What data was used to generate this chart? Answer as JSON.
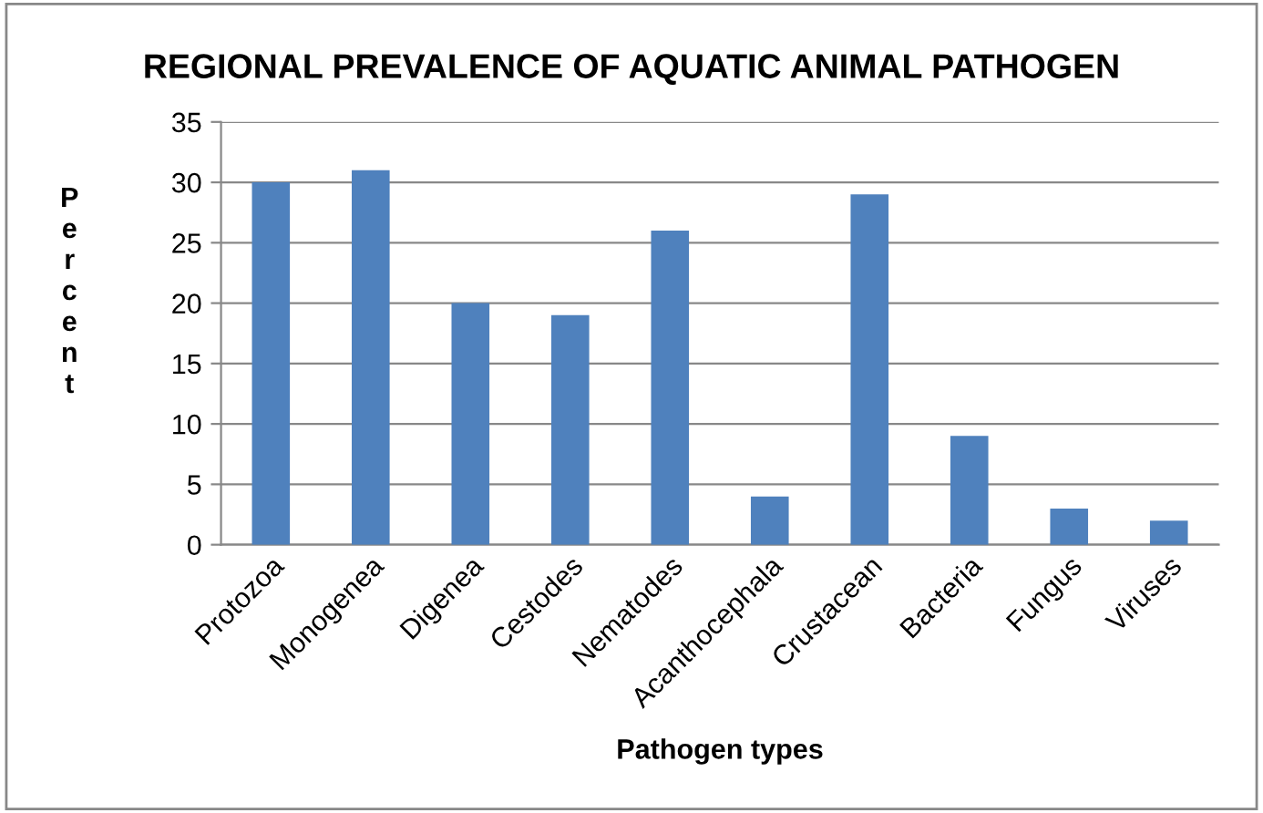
{
  "chart_data": {
    "type": "bar",
    "title": "REGIONAL PREVALENCE OF AQUATIC ANIMAL PATHOGEN",
    "xlabel": "Pathogen types",
    "ylabel": "Percent",
    "categories": [
      "Protozoa",
      "Monogenea",
      "Digenea",
      "Cestodes",
      "Nematodes",
      "Acanthocephala",
      "Crustacean",
      "Bacteria",
      "Fungus",
      "Viruses"
    ],
    "values": [
      30,
      31,
      20,
      19,
      26,
      4,
      29,
      9,
      3,
      2
    ],
    "color": "#4f81bd",
    "ylim": [
      0,
      35
    ],
    "yticks": [
      0,
      5,
      10,
      15,
      20,
      25,
      30,
      35
    ],
    "grid": "y",
    "legend": false
  }
}
